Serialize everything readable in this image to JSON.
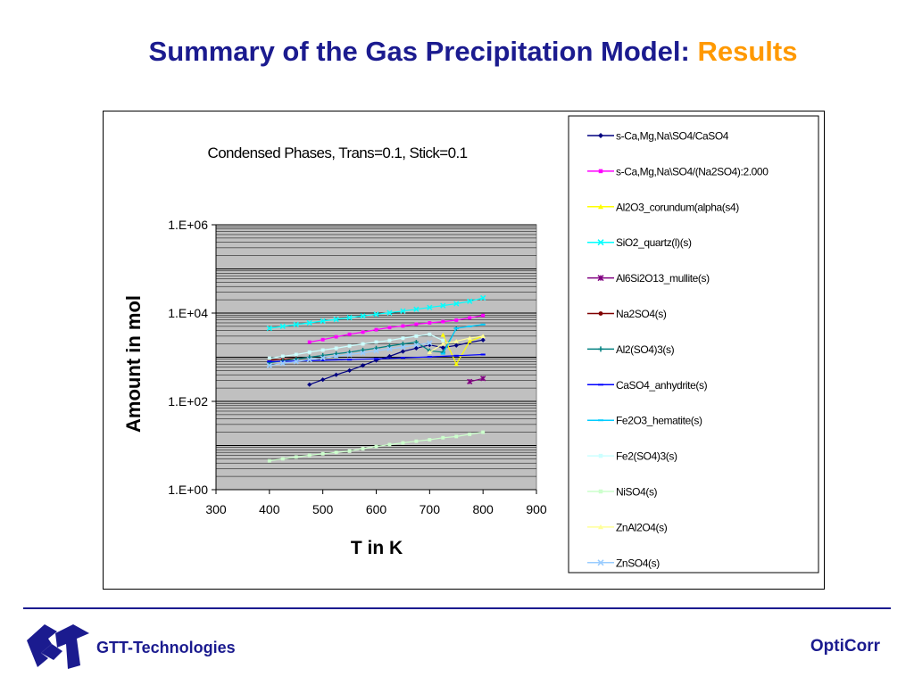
{
  "slide": {
    "title_main": "Summary of the Gas Precipitation Model: ",
    "title_accent": "Results"
  },
  "footer": {
    "left_label": "GTT-Technologies",
    "right_label": "OptiCorr"
  },
  "colors": {
    "title": "#1b1b8f",
    "accent": "#ff9900",
    "plot_bg": "#c0c0c0"
  },
  "chart_data": {
    "type": "line",
    "title": "Condensed Phases, Trans=0.1, Stick=0.1",
    "xlabel": "T in K",
    "ylabel": "Amount in mol",
    "xlim": [
      300,
      900
    ],
    "xticks": [
      300,
      400,
      500,
      600,
      700,
      800,
      900
    ],
    "ylim": [
      1,
      1000000
    ],
    "yscale": "log",
    "yticks": [
      1,
      100,
      10000,
      1000000
    ],
    "ytick_labels": [
      "1.E+00",
      "1.E+02",
      "1.E+04",
      "1.E+06"
    ],
    "grid": true,
    "legend_position": "right",
    "series": [
      {
        "name": "s-Ca,Mg,Na\\SO4/CaSO4",
        "color": "#000080",
        "marker": "diamond",
        "x": [
          475,
          500,
          525,
          550,
          575,
          600,
          625,
          650,
          675,
          700,
          725,
          750,
          775,
          800
        ],
        "y": [
          240,
          310,
          400,
          500,
          650,
          850,
          1050,
          1350,
          1600,
          1900,
          1650,
          1850,
          2150,
          2450
        ]
      },
      {
        "name": "s-Ca,Mg,Na\\SO4/(Na2SO4):2.000",
        "color": "#ff00ff",
        "marker": "square",
        "x": [
          475,
          500,
          525,
          550,
          575,
          600,
          625,
          650,
          675,
          700,
          725,
          750,
          775,
          800
        ],
        "y": [
          2200,
          2500,
          2900,
          3300,
          3700,
          4200,
          4700,
          5100,
          5600,
          6000,
          6400,
          6900,
          7800,
          8800
        ]
      },
      {
        "name": "Al2O3_corundum(alpha(s4)",
        "color": "#ffff00",
        "marker": "triangle",
        "x": [
          725,
          750,
          775,
          800
        ],
        "y": [
          3200,
          700,
          2300,
          3000
        ]
      },
      {
        "name": "SiO2_quartz(l)(s)",
        "color": "#00ffff",
        "marker": "x",
        "x": [
          400,
          425,
          450,
          475,
          500,
          525,
          550,
          575,
          600,
          625,
          650,
          675,
          700,
          725,
          750,
          775,
          800
        ],
        "y": [
          4500,
          5000,
          5500,
          6000,
          6600,
          7200,
          7900,
          8600,
          9400,
          10200,
          11100,
          12200,
          13400,
          14800,
          16300,
          18500,
          22000
        ]
      },
      {
        "name": "Al6Si2O13_mullite(s)",
        "color": "#800080",
        "marker": "star",
        "x": [
          775,
          800
        ],
        "y": [
          280,
          330
        ]
      },
      {
        "name": "Na2SO4(s)",
        "color": "#800000",
        "marker": "circle",
        "x": [
          400,
          425,
          450
        ],
        "y": [
          850,
          900,
          950
        ]
      },
      {
        "name": "Al2(SO4)3(s)",
        "color": "#008080",
        "marker": "plus",
        "x": [
          400,
          425,
          450,
          475,
          500,
          525,
          550,
          575,
          600,
          625,
          650,
          675,
          700,
          725,
          750
        ],
        "y": [
          750,
          830,
          920,
          1000,
          1100,
          1200,
          1300,
          1450,
          1600,
          1800,
          2000,
          2200,
          1400,
          1300,
          4500
        ]
      },
      {
        "name": "CaSO4_anhydrite(s)",
        "color": "#0000ff",
        "marker": "dash",
        "x": [
          400,
          450,
          500,
          550,
          600,
          650,
          700,
          750,
          800
        ],
        "y": [
          800,
          820,
          850,
          880,
          920,
          970,
          1020,
          1080,
          1150
        ]
      },
      {
        "name": "Fe2O3_hematite(s)",
        "color": "#00ccff",
        "marker": "dash",
        "x": [
          725,
          750,
          775,
          800
        ],
        "y": [
          1200,
          4500,
          5000,
          5500
        ]
      },
      {
        "name": "Fe2(SO4)3(s)",
        "color": "#ccffff",
        "marker": "square",
        "x": [
          400,
          425,
          450,
          475,
          500,
          525,
          550,
          575,
          600,
          625,
          650,
          675,
          700,
          725
        ],
        "y": [
          950,
          1050,
          1150,
          1300,
          1450,
          1600,
          1800,
          2000,
          2200,
          2400,
          2700,
          3000,
          3300,
          2400
        ]
      },
      {
        "name": "NiSO4(s)",
        "color": "#ccffcc",
        "marker": "square",
        "x": [
          400,
          425,
          450,
          475,
          500,
          525,
          550,
          575,
          600,
          625,
          650,
          675,
          700,
          725,
          750,
          775,
          800
        ],
        "y": [
          4.5,
          5,
          5.5,
          6,
          6.5,
          7,
          7.5,
          8.5,
          9.5,
          10.5,
          11.5,
          12.5,
          13.5,
          15,
          16,
          18,
          20
        ]
      },
      {
        "name": "ZnAl2O4(s)",
        "color": "#ffff99",
        "marker": "triangle",
        "x": [
          700,
          725,
          750,
          775,
          800
        ],
        "y": [
          1300,
          2000,
          2300,
          2700,
          3000
        ]
      },
      {
        "name": "ZnSO4(s)",
        "color": "#99ccff",
        "marker": "x",
        "x": [
          400,
          425,
          450,
          475,
          500,
          525,
          550,
          575,
          600,
          625,
          650,
          675,
          700
        ],
        "y": [
          650,
          730,
          800,
          880,
          960,
          1050,
          1150,
          1250,
          1400,
          1550,
          1700,
          1900,
          2100
        ]
      }
    ]
  }
}
